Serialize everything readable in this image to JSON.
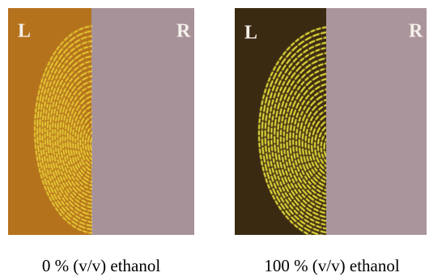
{
  "panels": [
    {
      "left_label": "L",
      "right_label": "R",
      "caption": "0 % (v/v) ethanol"
    },
    {
      "left_label": "L",
      "right_label": "R",
      "caption": "100 % (v/v) ethanol"
    }
  ]
}
